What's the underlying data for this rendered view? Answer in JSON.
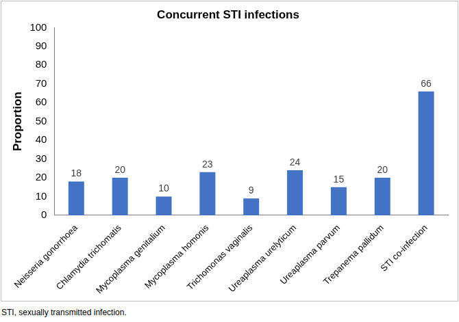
{
  "chart_data": {
    "type": "bar",
    "title": "Concurrent STI infections",
    "y_label": "Proportion",
    "categories": [
      "Neisseria gonorrhoea",
      "Chlamydia trichomatis",
      "Mycoplasma genitalium",
      "Mycoplasma homonis",
      "Trichomonas vaginalis",
      "Ureaplasma urelyticum",
      "Ureaplasma parvum",
      "Trepanema pallidum",
      "STI co-infection"
    ],
    "values": [
      18,
      20,
      10,
      23,
      9,
      24,
      15,
      20,
      66
    ],
    "color": "#4472c4",
    "ylim": [
      0,
      100
    ],
    "yticks": [
      0,
      10,
      20,
      30,
      40,
      50,
      60,
      70,
      80,
      90,
      100
    ],
    "grid": false,
    "data_labels": true,
    "footnote": "STI, sexually transmitted infection."
  }
}
